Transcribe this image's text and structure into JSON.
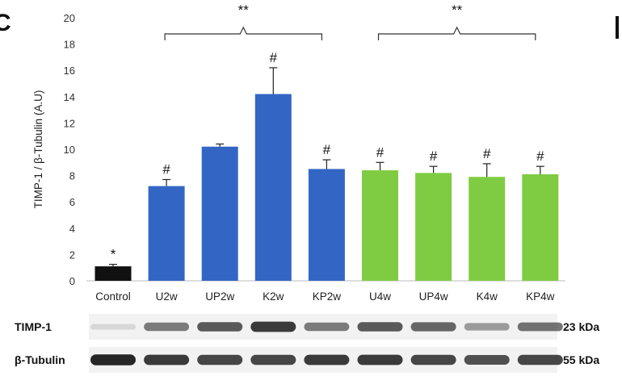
{
  "panel_letter": "C",
  "chart_data": {
    "type": "bar",
    "ylabel": "TIMP-1 / β-Tubulin (A.U)",
    "ylim": [
      0,
      20
    ],
    "yticks": [
      0,
      2,
      4,
      6,
      8,
      10,
      12,
      14,
      16,
      18,
      20
    ],
    "categories": [
      "Control",
      "U2w",
      "UP2w",
      "K2w",
      "KP2w",
      "U4w",
      "UP4w",
      "K4w",
      "KP4w"
    ],
    "values": [
      1.1,
      7.2,
      10.2,
      14.2,
      8.5,
      8.4,
      8.2,
      7.9,
      8.1
    ],
    "errors": [
      0.15,
      0.5,
      0.2,
      2.0,
      0.7,
      0.6,
      0.5,
      1.0,
      0.6
    ],
    "bar_colors": [
      "#111111",
      "#3366c4",
      "#3366c4",
      "#3366c4",
      "#3366c4",
      "#7fcc43",
      "#7fcc43",
      "#7fcc43",
      "#7fcc43"
    ],
    "marks": [
      "*",
      "#",
      "",
      "#",
      "#",
      "#",
      "#",
      "#",
      "#"
    ],
    "grid": false,
    "significance": [
      {
        "label": "**",
        "from": 1,
        "to": 4
      },
      {
        "label": "**",
        "from": 5,
        "to": 8
      }
    ]
  },
  "blots": [
    {
      "label": "TIMP-1",
      "size": "23 kDa",
      "intensities": [
        0.12,
        0.55,
        0.7,
        0.85,
        0.55,
        0.7,
        0.65,
        0.4,
        0.6
      ]
    },
    {
      "label": "β-Tubulin",
      "size": "55 kDa",
      "intensities": [
        0.95,
        0.85,
        0.8,
        0.8,
        0.85,
        0.85,
        0.8,
        0.75,
        0.8
      ]
    }
  ]
}
